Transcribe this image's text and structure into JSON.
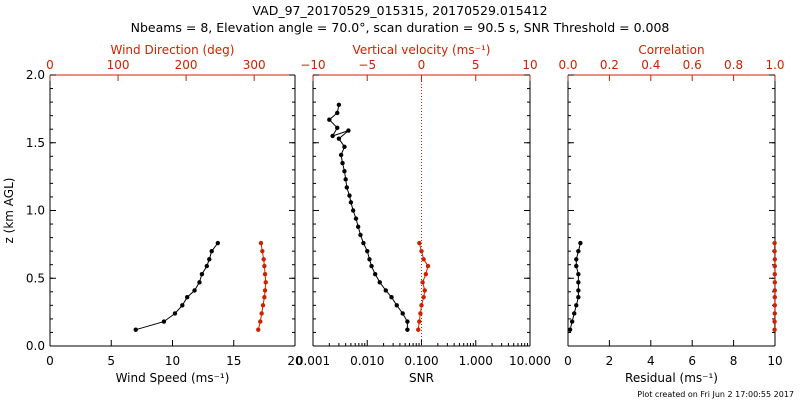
{
  "title_line1": "VAD_97_20170529_015315, 20170529.015412",
  "title_line2": "Nbeams = 8, Elevation angle = 70.0°, scan duration = 90.5 s, SNR Threshold = 0.008",
  "footer": "Plot created on Fri Jun  2 17:00:55 2017",
  "colors": {
    "axis": "#000000",
    "secondary": "#cc2200"
  },
  "chart_data": [
    {
      "type": "line",
      "ylabel": "z (km AGL)",
      "ylim": [
        0,
        2
      ],
      "yticks": [
        "0.0",
        "0.5",
        "1.0",
        "1.5",
        "2.0"
      ],
      "xlabel": "Wind Speed (ms⁻¹)",
      "xlim": [
        0,
        20
      ],
      "xticks": [
        "0",
        "5",
        "10",
        "15",
        "20"
      ],
      "top_xlabel": "Wind Direction (deg)",
      "top_xlim": [
        0,
        360
      ],
      "top_xticks": [
        "0",
        "100",
        "200",
        "300"
      ],
      "series": [
        {
          "axis": "bottom",
          "color": "#000000",
          "x": [
            7.0,
            9.3,
            10.2,
            10.8,
            11.2,
            11.8,
            12.2,
            12.4,
            12.8,
            13.0,
            13.2,
            13.7
          ],
          "y": [
            0.12,
            0.18,
            0.24,
            0.3,
            0.36,
            0.41,
            0.47,
            0.53,
            0.59,
            0.64,
            0.7,
            0.76
          ]
        },
        {
          "axis": "top",
          "color": "#cc2200",
          "x": [
            306,
            309,
            311,
            313,
            315,
            316,
            317,
            316,
            315,
            314,
            312,
            310
          ],
          "y": [
            0.12,
            0.18,
            0.24,
            0.3,
            0.36,
            0.41,
            0.47,
            0.53,
            0.59,
            0.64,
            0.7,
            0.76
          ]
        }
      ]
    },
    {
      "type": "line",
      "xlabel": "SNR",
      "xscale": "log",
      "xlim": [
        0.001,
        10
      ],
      "xticks": [
        "0.001",
        "0.010",
        "0.100",
        "1.000",
        "10.000"
      ],
      "top_xlabel": "Vertical velocity (ms⁻¹)",
      "top_xlim": [
        -10,
        10
      ],
      "top_xticks": [
        "−10",
        "−5",
        "0",
        "5",
        "10"
      ],
      "zero_line": 0,
      "series": [
        {
          "axis": "bottom",
          "color": "#000000",
          "x": [
            0.055,
            0.055,
            0.045,
            0.035,
            0.028,
            0.022,
            0.017,
            0.014,
            0.012,
            0.011,
            0.01,
            0.0085,
            0.0075,
            0.0068,
            0.0062,
            0.0055,
            0.005,
            0.0047,
            0.0042,
            0.004,
            0.0038,
            0.0035,
            0.0033,
            0.0038,
            0.003,
            0.0045,
            0.0023,
            0.0028,
            0.002,
            0.0028,
            0.003
          ],
          "y": [
            0.12,
            0.18,
            0.24,
            0.3,
            0.36,
            0.41,
            0.47,
            0.53,
            0.59,
            0.64,
            0.7,
            0.76,
            0.82,
            0.88,
            0.94,
            1.0,
            1.06,
            1.11,
            1.17,
            1.23,
            1.29,
            1.35,
            1.41,
            1.47,
            1.53,
            1.59,
            1.55,
            1.61,
            1.67,
            1.72,
            1.78
          ]
        },
        {
          "axis": "top",
          "color": "#cc2200",
          "x": [
            -0.3,
            -0.2,
            -0.1,
            0.0,
            0.2,
            0.3,
            0.1,
            0.4,
            0.6,
            0.2,
            0.0,
            -0.2
          ],
          "y": [
            0.12,
            0.18,
            0.24,
            0.3,
            0.36,
            0.41,
            0.47,
            0.53,
            0.59,
            0.64,
            0.7,
            0.76
          ]
        }
      ]
    },
    {
      "type": "line",
      "xlabel": "Residual (ms⁻¹)",
      "xlim": [
        0,
        10
      ],
      "xticks": [
        "0",
        "2",
        "4",
        "6",
        "8",
        "10"
      ],
      "top_xlabel": "Correlation",
      "top_xlim": [
        0,
        1
      ],
      "top_xticks": [
        "0.0",
        "0.2",
        "0.4",
        "0.6",
        "0.8",
        "1.0"
      ],
      "series": [
        {
          "axis": "bottom",
          "color": "#000000",
          "x": [
            0.1,
            0.2,
            0.3,
            0.4,
            0.5,
            0.5,
            0.5,
            0.5,
            0.4,
            0.4,
            0.5,
            0.6
          ],
          "y": [
            0.12,
            0.18,
            0.24,
            0.3,
            0.36,
            0.41,
            0.47,
            0.53,
            0.59,
            0.64,
            0.7,
            0.76
          ]
        },
        {
          "axis": "top",
          "color": "#cc2200",
          "x": [
            0.998,
            0.998,
            0.999,
            0.999,
            0.999,
            0.999,
            0.999,
            0.999,
            0.999,
            0.999,
            0.998,
            0.998
          ],
          "y": [
            0.12,
            0.18,
            0.24,
            0.3,
            0.36,
            0.41,
            0.47,
            0.53,
            0.59,
            0.64,
            0.7,
            0.76
          ]
        }
      ]
    }
  ]
}
